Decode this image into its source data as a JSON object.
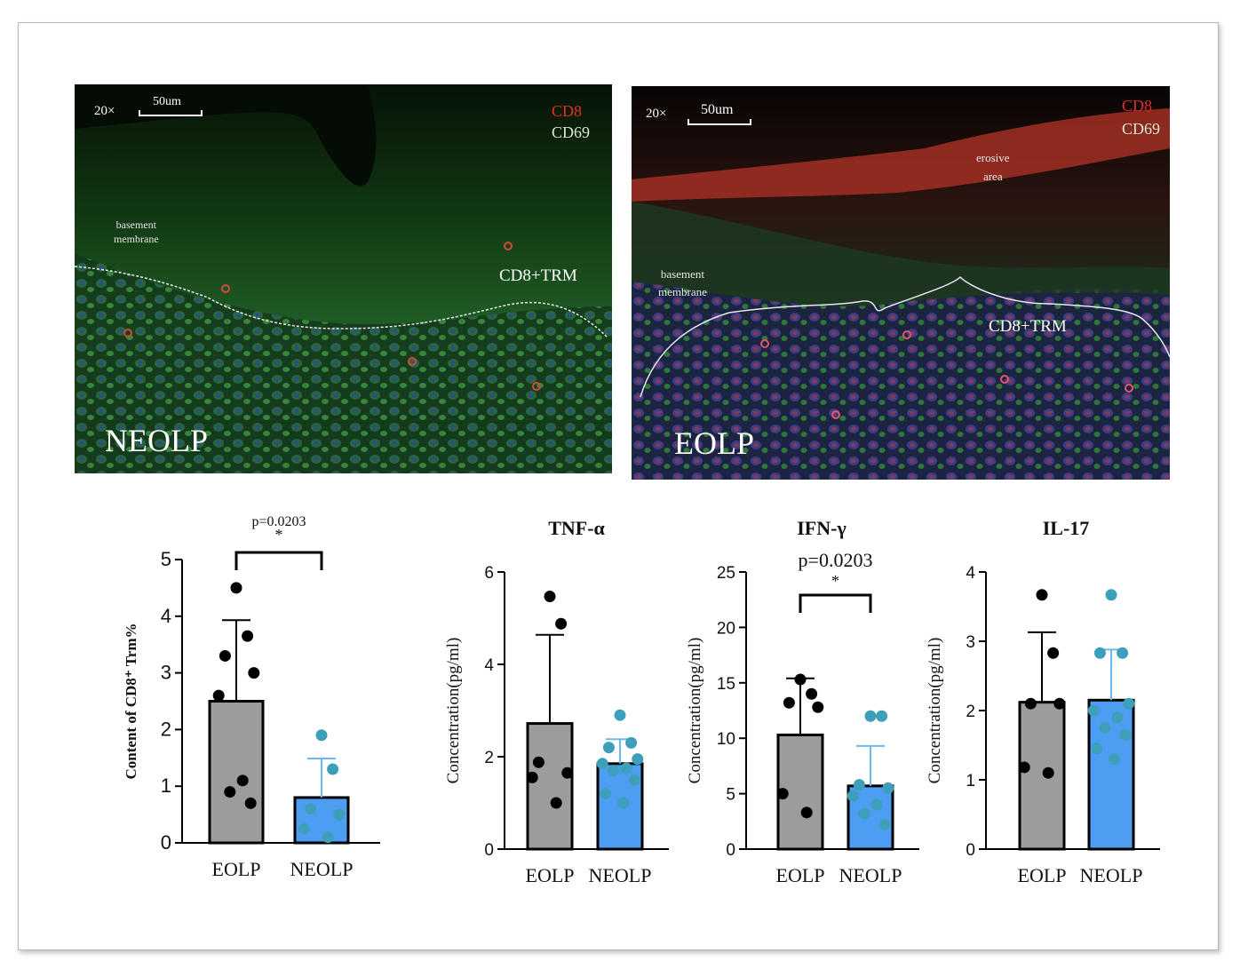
{
  "micrographs": [
    {
      "panel_label": "NEOLP",
      "magnification": "20×",
      "scale_bar": "50um",
      "stain_labels": [
        {
          "text": "CD8",
          "color": "#e0312a"
        },
        {
          "text": "CD69",
          "color": "#d9e8d2"
        }
      ],
      "annotations": {
        "basement_membrane": "basement\nmembrane",
        "trm": "CD8+TRM"
      }
    },
    {
      "panel_label": "EOLP",
      "magnification": "20×",
      "scale_bar": "50um",
      "stain_labels": [
        {
          "text": "CD8",
          "color": "#e0312a"
        },
        {
          "text": "CD69",
          "color": "#d9e8d2"
        }
      ],
      "annotations": {
        "erosive_area": "erosive\narea",
        "basement_membrane": "basement\nmembrane",
        "trm": "CD8+TRM"
      }
    }
  ],
  "colors": {
    "eolp_bar": "#9d9c9d",
    "neolp_bar": "#4d9ef2",
    "eolp_dot": "#000000",
    "neolp_dot": "#3d9fb9",
    "axis": "#000000"
  },
  "chart_data": [
    {
      "type": "bar",
      "title": "",
      "ylabel": "Content of CD8⁺ Trm%",
      "categories": [
        "EOLP",
        "NEOLP"
      ],
      "values": [
        2.5,
        0.8
      ],
      "error_upper": [
        3.93,
        1.49
      ],
      "points": [
        [
          4.5,
          3.65,
          3.3,
          3.0,
          2.6,
          1.1,
          0.9,
          0.7
        ],
        [
          1.9,
          1.3,
          0.6,
          0.5,
          0.25,
          0.1
        ]
      ],
      "ylim": [
        0,
        5
      ],
      "yticks": [
        0,
        1,
        2,
        3,
        4,
        5
      ],
      "significance": {
        "text": "p=0.0203",
        "mark": "*"
      }
    },
    {
      "type": "bar",
      "title": "TNF-α",
      "ylabel": "Concentration(pg/ml)",
      "categories": [
        "EOLP",
        "NEOLP"
      ],
      "values": [
        2.72,
        1.85
      ],
      "error_upper": [
        4.64,
        2.38
      ],
      "points": [
        [
          5.47,
          4.88,
          1.88,
          1.65,
          1.55,
          1.0
        ],
        [
          2.9,
          2.3,
          2.2,
          1.95,
          1.85,
          1.75,
          1.7,
          1.5,
          1.2,
          1.0
        ]
      ],
      "ylim": [
        0,
        6
      ],
      "yticks": [
        0,
        2,
        4,
        6
      ],
      "significance": null
    },
    {
      "type": "bar",
      "title": "IFN-γ",
      "ylabel": "Concentration(pg/ml)",
      "categories": [
        "EOLP",
        "NEOLP"
      ],
      "values": [
        10.3,
        5.7
      ],
      "error_upper": [
        15.4,
        9.3
      ],
      "points": [
        [
          15.3,
          14.0,
          13.2,
          12.8,
          5.0,
          3.3
        ],
        [
          12.0,
          12.0,
          5.8,
          5.5,
          4.8,
          4.0,
          3.2,
          2.2
        ]
      ],
      "ylim": [
        0,
        25
      ],
      "yticks": [
        0,
        5,
        10,
        15,
        20,
        25
      ],
      "significance": {
        "text": "p=0.0203",
        "mark": "*"
      }
    },
    {
      "type": "bar",
      "title": "IL-17",
      "ylabel": "Concentration(pg/ml)",
      "categories": [
        "EOLP",
        "NEOLP"
      ],
      "values": [
        2.12,
        2.15
      ],
      "error_upper": [
        3.13,
        2.88
      ],
      "points": [
        [
          3.67,
          2.83,
          2.1,
          2.1,
          1.18,
          1.1
        ],
        [
          3.67,
          2.83,
          2.83,
          2.1,
          2.0,
          1.9,
          1.75,
          1.65,
          1.45,
          1.3
        ]
      ],
      "ylim": [
        0,
        4
      ],
      "yticks": [
        0,
        1,
        2,
        3,
        4
      ],
      "significance": null
    }
  ]
}
